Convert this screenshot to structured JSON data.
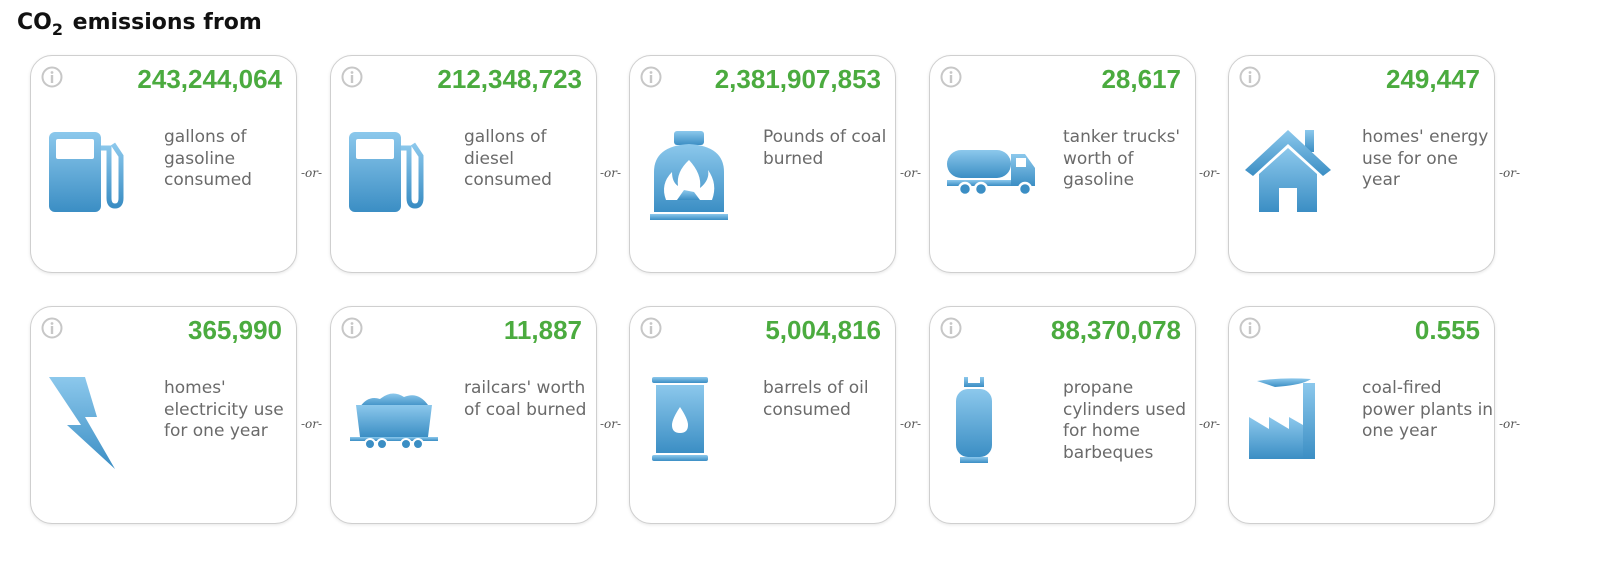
{
  "heading": {
    "prefix": "CO",
    "subscript": "2",
    "suffix": " emissions from"
  },
  "separator": "-or-",
  "colors": {
    "value": "#4bab3f",
    "icon": "#5aa8d6",
    "label": "#6a6a6a"
  },
  "cards": [
    {
      "value": "243,244,064",
      "label": "gallons of gasoline consumed",
      "icon": "gas-pump-icon"
    },
    {
      "value": "212,348,723",
      "label": "gallons of diesel consumed",
      "icon": "diesel-pump-icon"
    },
    {
      "value": "2,381,907,853",
      "label": "Pounds of coal burned",
      "icon": "coal-furnace-icon"
    },
    {
      "value": "28,617",
      "label": "tanker trucks' worth of gasoline",
      "icon": "tanker-truck-icon"
    },
    {
      "value": "249,447",
      "label": "homes' energy use for one year",
      "icon": "house-icon"
    },
    {
      "value": "365,990",
      "label": "homes' electricity use for one year",
      "icon": "lightning-bolt-icon"
    },
    {
      "value": "11,887",
      "label": "railcars' worth of coal burned",
      "icon": "coal-railcar-icon"
    },
    {
      "value": "5,004,816",
      "label": "barrels of oil consumed",
      "icon": "oil-barrel-icon"
    },
    {
      "value": "88,370,078",
      "label": "propane cylinders used for home barbeques",
      "icon": "propane-cylinder-icon"
    },
    {
      "value": "0.555",
      "label": "coal-fired power plants in one year",
      "icon": "power-plant-icon"
    }
  ]
}
